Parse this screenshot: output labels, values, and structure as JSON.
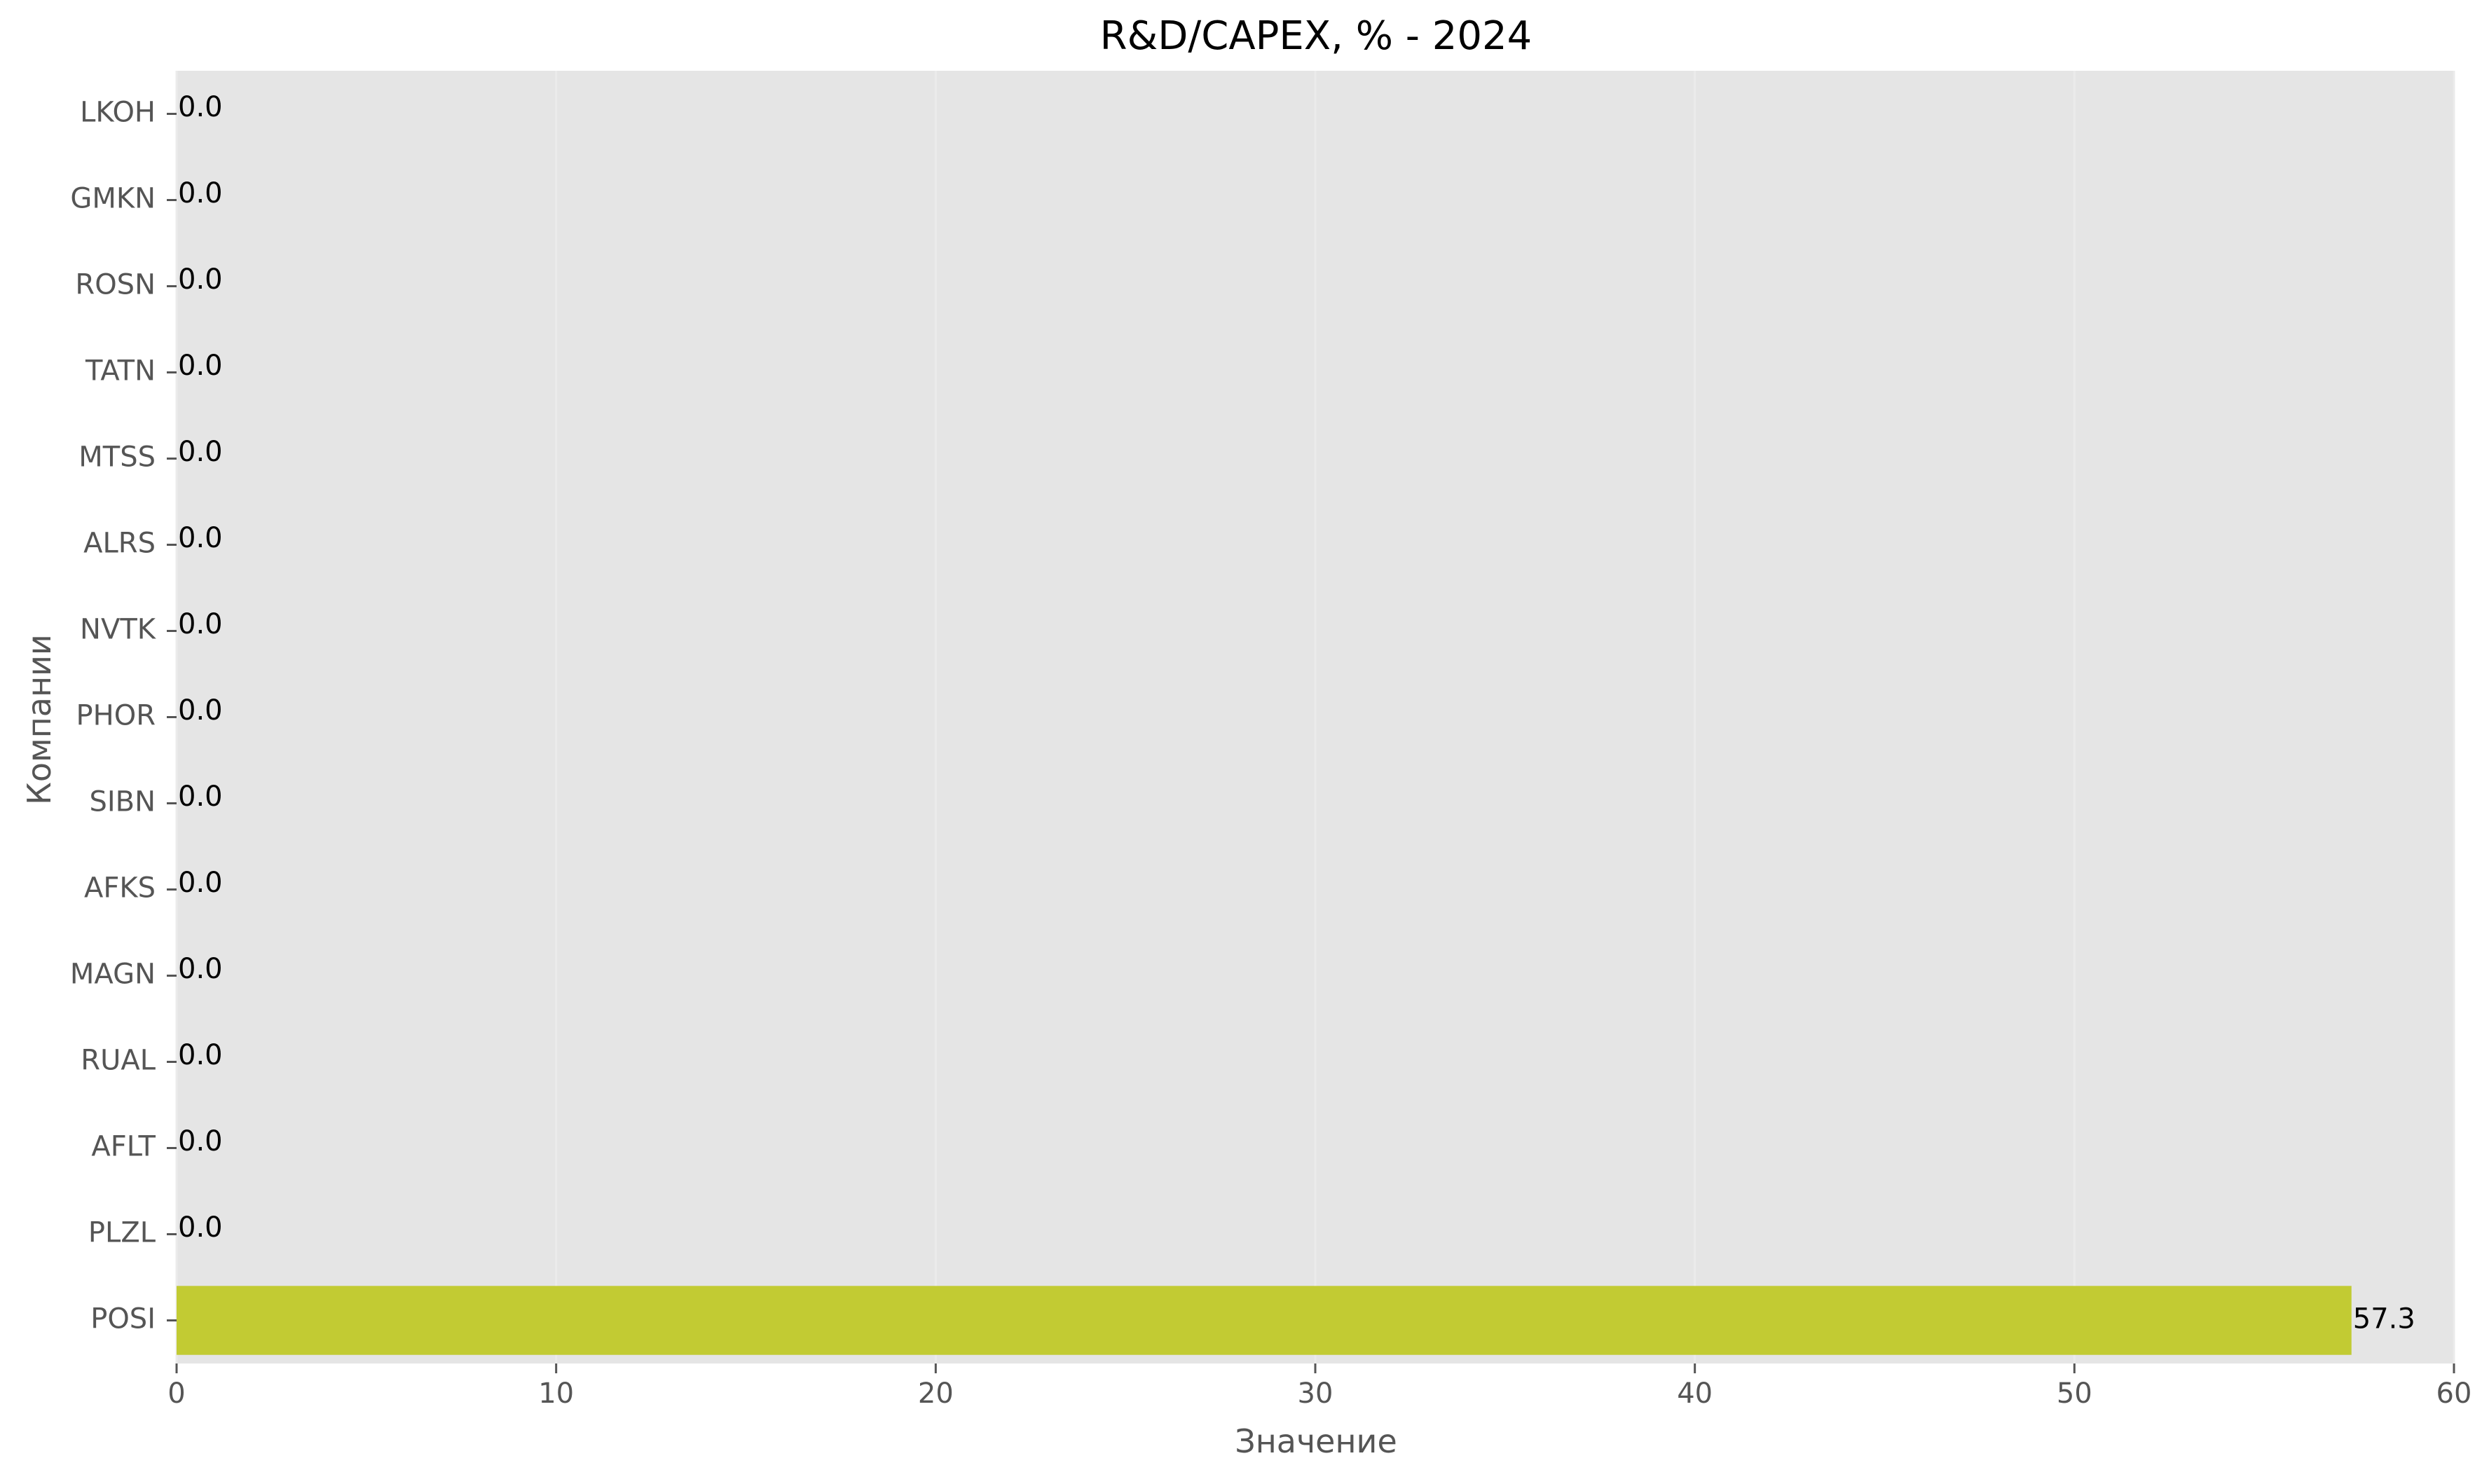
{
  "chart_data": {
    "type": "bar",
    "orientation": "horizontal",
    "title": "R&D/CAPEX, % - 2024",
    "xlabel": "Значение",
    "ylabel": "Компании",
    "categories": [
      "LKOH",
      "GMKN",
      "ROSN",
      "TATN",
      "MTSS",
      "ALRS",
      "NVTK",
      "PHOR",
      "SIBN",
      "AFKS",
      "MAGN",
      "RUAL",
      "AFLT",
      "PLZL",
      "POSI"
    ],
    "values": [
      0.0,
      0.0,
      0.0,
      0.0,
      0.0,
      0.0,
      0.0,
      0.0,
      0.0,
      0.0,
      0.0,
      0.0,
      0.0,
      0.0,
      57.3
    ],
    "data_labels": [
      "0.0",
      "0.0",
      "0.0",
      "0.0",
      "0.0",
      "0.0",
      "0.0",
      "0.0",
      "0.0",
      "0.0",
      "0.0",
      "0.0",
      "0.0",
      "0.0",
      "57.3"
    ],
    "xlim": [
      0,
      60
    ],
    "xticks": [
      0,
      10,
      20,
      30,
      40,
      50,
      60
    ],
    "xtick_labels": [
      "0",
      "10",
      "20",
      "30",
      "40",
      "50",
      "60"
    ],
    "grid": true,
    "legend": "none",
    "colors": {
      "bar": "#c2cb33",
      "axes_background": "#e5e5e5",
      "grid": "#ebebeb",
      "tick_text": "#555555",
      "label_text": "#555555",
      "title_text": "#000000",
      "value_text": "#000000"
    }
  }
}
